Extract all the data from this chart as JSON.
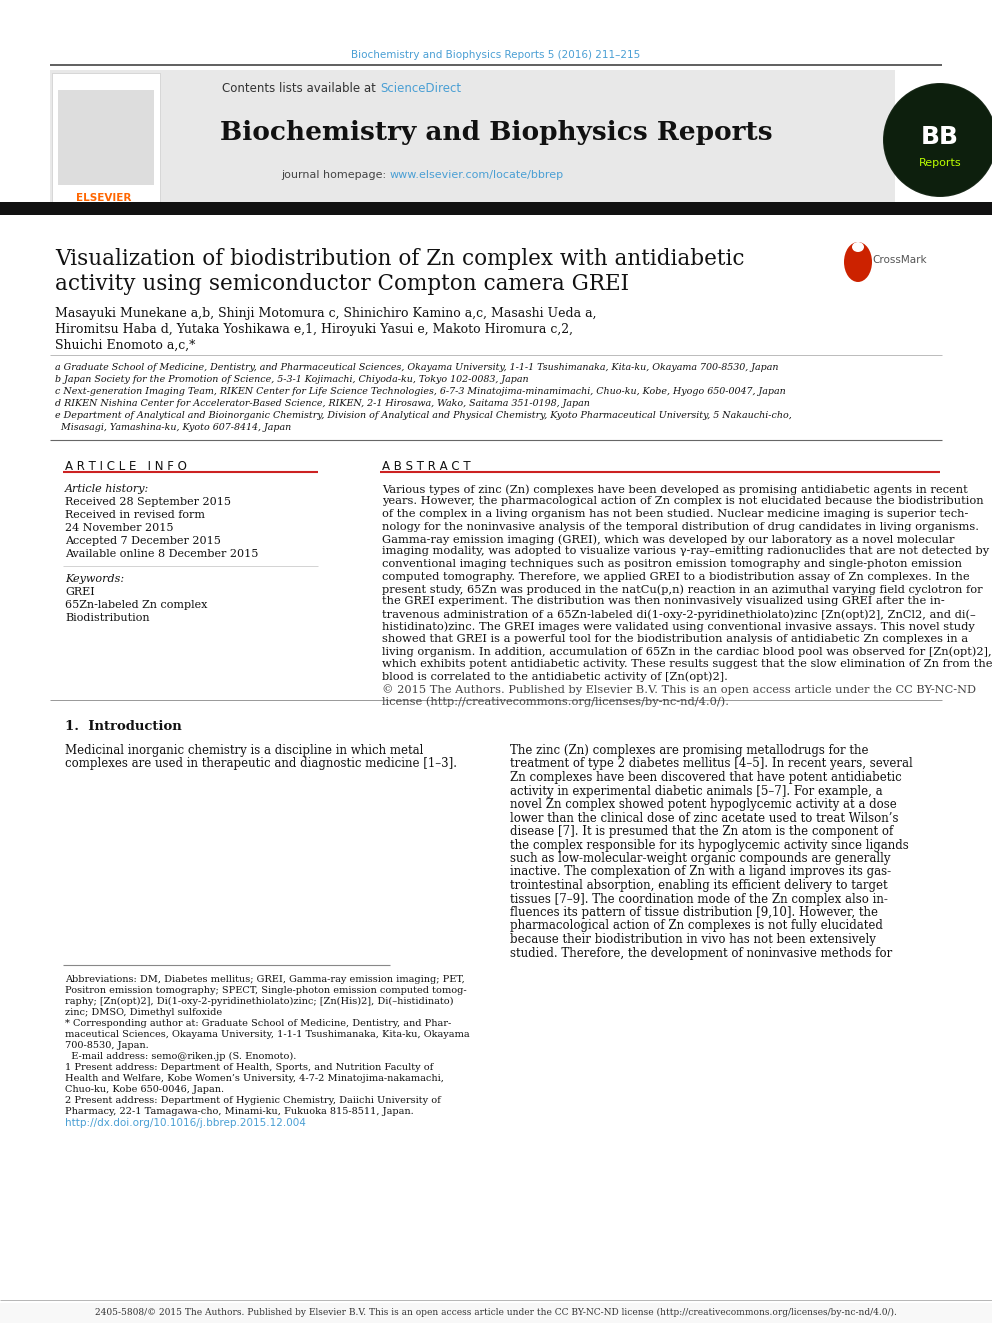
{
  "page_color": "#ffffff",
  "top_citation": "Biochemistry and Biophysics Reports 5 (2016) 211–215",
  "top_citation_color": "#4a9fd4",
  "header_bg": "#e8e8e8",
  "header_link_color": "#4a9fd4",
  "journal_title": "Biochemistry and Biophysics Reports",
  "journal_homepage_link": "www.elsevier.com/locate/bbrep",
  "journal_homepage_link_color": "#4a9fd4",
  "article_title_line1": "Visualization of biodistribution of Zn complex with antidiabetic",
  "article_title_line2": "activity using semiconductor Compton camera GREI",
  "author_line1": "Masayuki Munekane a,b, Shinji Motomura c, Shinichiro Kamino a,c, Masashi Ueda a,",
  "author_line2": "Hiromitsu Haba d, Yutaka Yoshikawa e,1, Hiroyuki Yasui e, Makoto Hiromura c,2,",
  "author_line3": "Shuichi Enomoto a,c,*",
  "affiliations": [
    "a Graduate School of Medicine, Dentistry, and Pharmaceutical Sciences, Okayama University, 1-1-1 Tsushimanaka, Kita-ku, Okayama 700-8530, Japan",
    "b Japan Society for the Promotion of Science, 5-3-1 Kojimachi, Chiyoda-ku, Tokyo 102-0083, Japan",
    "c Next-generation Imaging Team, RIKEN Center for Life Science Technologies, 6-7-3 Minatojima-minamimachi, Chuo-ku, Kobe, Hyogo 650-0047, Japan",
    "d RIKEN Nishina Center for Accelerator-Based Science, RIKEN, 2-1 Hirosawa, Wako, Saitama 351-0198, Japan",
    "e Department of Analytical and Bioinorganic Chemistry, Division of Analytical and Physical Chemistry, Kyoto Pharmaceutical University, 5 Nakauchi-cho,",
    "  Misasagi, Yamashina-ku, Kyoto 607-8414, Japan"
  ],
  "article_info_header": "A R T I C L E   I N F O",
  "abstract_header": "A B S T R A C T",
  "article_history_label": "Article history:",
  "history_items": [
    "Received 28 September 2015",
    "Received in revised form",
    "24 November 2015",
    "Accepted 7 December 2015",
    "Available online 8 December 2015"
  ],
  "keywords_label": "Keywords:",
  "keyword_items": [
    "GREI",
    "65Zn-labeled Zn complex",
    "Biodistribution"
  ],
  "abstract_lines": [
    "Various types of zinc (Zn) complexes have been developed as promising antidiabetic agents in recent",
    "years. However, the pharmacological action of Zn complex is not elucidated because the biodistribution",
    "of the complex in a living organism has not been studied. Nuclear medicine imaging is superior tech-",
    "nology for the noninvasive analysis of the temporal distribution of drug candidates in living organisms.",
    "Gamma-ray emission imaging (GREI), which was developed by our laboratory as a novel molecular",
    "imaging modality, was adopted to visualize various γ-ray–emitting radionuclides that are not detected by",
    "conventional imaging techniques such as positron emission tomography and single-photon emission",
    "computed tomography. Therefore, we applied GREI to a biodistribution assay of Zn complexes. In the",
    "present study, 65Zn was produced in the natCu(p,n) reaction in an azimuthal varying field cyclotron for",
    "the GREI experiment. The distribution was then noninvasively visualized using GREI after the in-",
    "travenous administration of a 65Zn-labeled di(1-oxy-2-pyridinethiolato)zinc [Zn(opt)2], ZnCl2, and di(–",
    "histidinato)zinc. The GREI images were validated using conventional invasive assays. This novel study",
    "showed that GREI is a powerful tool for the biodistribution analysis of antidiabetic Zn complexes in a",
    "living organism. In addition, accumulation of 65Zn in the cardiac blood pool was observed for [Zn(opt)2],",
    "which exhibits potent antidiabetic activity. These results suggest that the slow elimination of Zn from the",
    "blood is correlated to the antidiabetic activity of [Zn(opt)2].",
    "© 2015 The Authors. Published by Elsevier B.V. This is an open access article under the CC BY-NC-ND",
    "license (http://creativecommons.org/licenses/by-nc-nd/4.0/)."
  ],
  "intro_title": "1.  Introduction",
  "intro_col1_lines": [
    "Medicinal inorganic chemistry is a discipline in which metal",
    "complexes are used in therapeutic and diagnostic medicine [1–3]."
  ],
  "intro_col2_lines": [
    "The zinc (Zn) complexes are promising metallodrugs for the",
    "treatment of type 2 diabetes mellitus [4–5]. In recent years, several",
    "Zn complexes have been discovered that have potent antidiabetic",
    "activity in experimental diabetic animals [5–7]. For example, a",
    "novel Zn complex showed potent hypoglycemic activity at a dose",
    "lower than the clinical dose of zinc acetate used to treat Wilson’s",
    "disease [7]. It is presumed that the Zn atom is the component of",
    "the complex responsible for its hypoglycemic activity since ligands",
    "such as low-molecular-weight organic compounds are generally",
    "inactive. The complexation of Zn with a ligand improves its gas-",
    "trointestinal absorption, enabling its efficient delivery to target",
    "tissues [7–9]. The coordination mode of the Zn complex also in-",
    "fluences its pattern of tissue distribution [9,10]. However, the",
    "pharmacological action of Zn complexes is not fully elucidated",
    "because their biodistribution in vivo has not been extensively",
    "studied. Therefore, the development of noninvasive methods for"
  ],
  "footnote_lines": [
    "Abbreviations: DM, Diabetes mellitus; GREI, Gamma-ray emission imaging; PET,",
    "Positron emission tomography; SPECT, Single-photon emission computed tomog-",
    "raphy; [Zn(opt)2], Di(1-oxy-2-pyridinethiolato)zinc; [Zn(His)2], Di(–histidinato)",
    "zinc; DMSO, Dimethyl sulfoxide",
    "* Corresponding author at: Graduate School of Medicine, Dentistry, and Phar-",
    "maceutical Sciences, Okayama University, 1-1-1 Tsushimanaka, Kita-ku, Okayama",
    "700-8530, Japan.",
    "  E-mail address: semo@riken.jp (S. Enomoto).",
    "1 Present address: Department of Health, Sports, and Nutrition Faculty of",
    "Health and Welfare, Kobe Women’s University, 4-7-2 Minatojima-nakamachi,",
    "Chuo-ku, Kobe 650-0046, Japan.",
    "2 Present address: Department of Hygienic Chemistry, Daiichi University of",
    "Pharmacy, 22-1 Tamagawa-cho, Minami-ku, Fukuoka 815-8511, Japan."
  ],
  "doi_text": "http://dx.doi.org/10.1016/j.bbrep.2015.12.004",
  "doi_color": "#4a9fd4",
  "bottom_text": "2405-5808/© 2015 The Authors. Published by Elsevier B.V. This is an open access article under the CC BY-NC-ND license (http://creativecommons.org/licenses/by-nc-nd/4.0/)."
}
